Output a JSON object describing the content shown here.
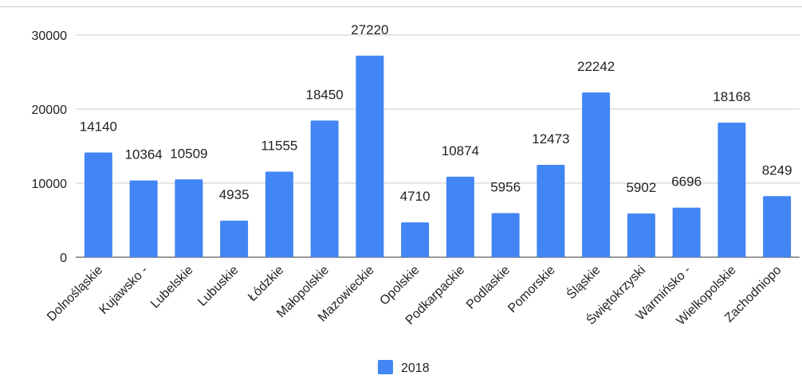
{
  "chart_data": {
    "type": "bar",
    "categories": [
      "Dolnośląskie",
      "Kujawsko -",
      "Lubelskie",
      "Lubuskie",
      "Łódzkie",
      "Małopolskie",
      "Mazowieckie",
      "Opolskie",
      "Podkarpackie",
      "Podlaskie",
      "Pomorskie",
      "Śląskie",
      "Świętokrzyski",
      "Warmińsko -",
      "Wielkopolskie",
      "Zachodniopo"
    ],
    "series": [
      {
        "name": "2018",
        "values": [
          14140,
          10364,
          10509,
          4935,
          11555,
          18450,
          27220,
          4710,
          10874,
          5956,
          12473,
          22242,
          5902,
          6696,
          18168,
          8249
        ]
      }
    ],
    "data_labels": [
      "14140",
      "10364",
      "10509",
      "4935",
      "11555",
      "18450",
      "27220",
      "4710",
      "10874",
      "5956",
      "12473",
      "22242",
      "5902",
      "6696",
      "18168",
      "8249"
    ],
    "yticks": [
      0,
      10000,
      20000,
      30000
    ],
    "ylim": [
      0,
      30000
    ],
    "grid": true,
    "legend_position": "bottom",
    "bar_color": "#4285f4",
    "title": "",
    "xlabel": "",
    "ylabel": ""
  }
}
